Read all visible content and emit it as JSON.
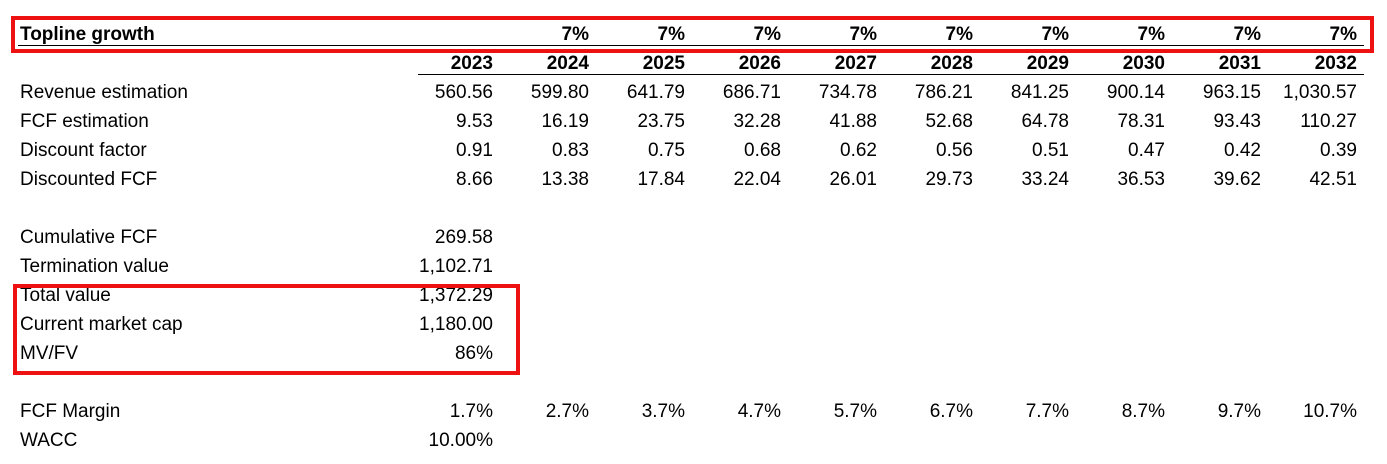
{
  "accent_color": "#ee1111",
  "topline": {
    "label": "Topline growth",
    "values": [
      "",
      "7%",
      "7%",
      "7%",
      "7%",
      "7%",
      "7%",
      "7%",
      "7%",
      "7%"
    ]
  },
  "years": [
    "2023",
    "2024",
    "2025",
    "2026",
    "2027",
    "2028",
    "2029",
    "2030",
    "2031",
    "2032"
  ],
  "rows": [
    {
      "label": "Revenue estimation",
      "values": [
        "560.56",
        "599.80",
        "641.79",
        "686.71",
        "734.78",
        "786.21",
        "841.25",
        "900.14",
        "963.15",
        "1,030.57"
      ]
    },
    {
      "label": "FCF estimation",
      "values": [
        "9.53",
        "16.19",
        "23.75",
        "32.28",
        "41.88",
        "52.68",
        "64.78",
        "78.31",
        "93.43",
        "110.27"
      ]
    },
    {
      "label": "Discount factor",
      "values": [
        "0.91",
        "0.83",
        "0.75",
        "0.68",
        "0.62",
        "0.56",
        "0.51",
        "0.47",
        "0.42",
        "0.39"
      ]
    },
    {
      "label": "Discounted FCF",
      "values": [
        "8.66",
        "13.38",
        "17.84",
        "22.04",
        "26.01",
        "29.73",
        "33.24",
        "36.53",
        "39.62",
        "42.51"
      ]
    }
  ],
  "summary": [
    {
      "label": "Cumulative FCF",
      "value": "269.58"
    },
    {
      "label": "Termination value",
      "value": "1,102.71"
    },
    {
      "label": "Total value",
      "value": "1,372.29"
    },
    {
      "label": "Current market cap",
      "value": "1,180.00"
    },
    {
      "label": "MV/FV",
      "value": "86%"
    }
  ],
  "fcf_margin": {
    "label": "FCF Margin",
    "values": [
      "1.7%",
      "2.7%",
      "3.7%",
      "4.7%",
      "5.7%",
      "6.7%",
      "7.7%",
      "8.7%",
      "9.7%",
      "10.7%"
    ]
  },
  "wacc": {
    "label": "WACC",
    "value": "10.00%"
  }
}
